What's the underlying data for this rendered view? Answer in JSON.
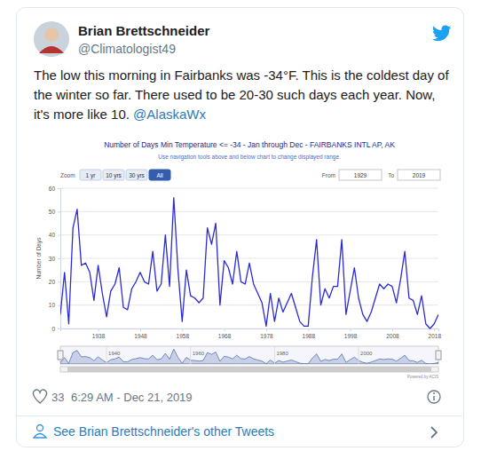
{
  "tweet": {
    "name": "Brian Brettschneider",
    "handle": "@Climatologist49",
    "text": "The low this morning in Fairbanks was -34°F. This is the coldest day of the winter so far. There used to be 20-30 such days each year. Now, it's more like 10.",
    "mention": "@AlaskaWx",
    "likes": 33,
    "timestamp": "6:29 AM - Dec 21, 2019",
    "footer_link": "See Brian Brettschneider's other Tweets"
  },
  "chart_widget": {
    "subtitle": "Use navigation tools above and below chart to change displayed range.",
    "zoom_label": "Zoom",
    "zoom_buttons": [
      "1 yr",
      "10 yrs",
      "30 yrs",
      "All"
    ],
    "from_label": "From",
    "from_value": "1929",
    "to_label": "To",
    "to_value": "2019",
    "credit": "Powered by ACIS",
    "navigator_xticks": [
      1940,
      1960,
      1980,
      2000
    ]
  },
  "chart_data": {
    "type": "line",
    "title": "Number of Days Min Temperature <= -34 - Jan through Dec - FAIRBANKS INTL AP, AK",
    "y_label": "Number of Days",
    "x": [
      1929,
      1930,
      1931,
      1932,
      1933,
      1934,
      1935,
      1936,
      1937,
      1938,
      1939,
      1940,
      1941,
      1942,
      1943,
      1944,
      1945,
      1946,
      1947,
      1948,
      1949,
      1950,
      1951,
      1952,
      1953,
      1954,
      1955,
      1956,
      1957,
      1958,
      1959,
      1960,
      1961,
      1962,
      1963,
      1964,
      1965,
      1966,
      1967,
      1968,
      1969,
      1970,
      1971,
      1972,
      1973,
      1974,
      1975,
      1976,
      1977,
      1978,
      1979,
      1980,
      1981,
      1982,
      1983,
      1984,
      1985,
      1986,
      1987,
      1988,
      1989,
      1990,
      1991,
      1992,
      1993,
      1994,
      1995,
      1996,
      1997,
      1998,
      1999,
      2000,
      2001,
      2002,
      2003,
      2004,
      2005,
      2006,
      2007,
      2008,
      2009,
      2010,
      2011,
      2012,
      2013,
      2014,
      2015,
      2016,
      2017,
      2018,
      2019
    ],
    "values": [
      6,
      24,
      2,
      43,
      51,
      27,
      28,
      24,
      12,
      27,
      15,
      5,
      16,
      19,
      26,
      9,
      8,
      17,
      20,
      24,
      20,
      19,
      33,
      16,
      19,
      40,
      18,
      56,
      25,
      3,
      25,
      14,
      13,
      11,
      13,
      43,
      36,
      45,
      10,
      29,
      26,
      19,
      33,
      20,
      19,
      28,
      19,
      15,
      11,
      1,
      15,
      3,
      13,
      7,
      11,
      15,
      9,
      3,
      1,
      1,
      22,
      38,
      10,
      17,
      13,
      18,
      18,
      38,
      6,
      16,
      26,
      13,
      6,
      3,
      7,
      13,
      19,
      17,
      19,
      18,
      11,
      21,
      33,
      13,
      12,
      6,
      14,
      2,
      0,
      2,
      6
    ],
    "color": "#2b2bd6",
    "xlim": [
      1929,
      2019
    ],
    "xticks": [
      1938,
      1948,
      1958,
      1968,
      1978,
      1988,
      1998,
      2008,
      2018
    ],
    "ylim": [
      0,
      60
    ],
    "yticks": [
      0,
      10,
      20,
      30,
      40,
      50,
      60
    ],
    "grid": true
  }
}
